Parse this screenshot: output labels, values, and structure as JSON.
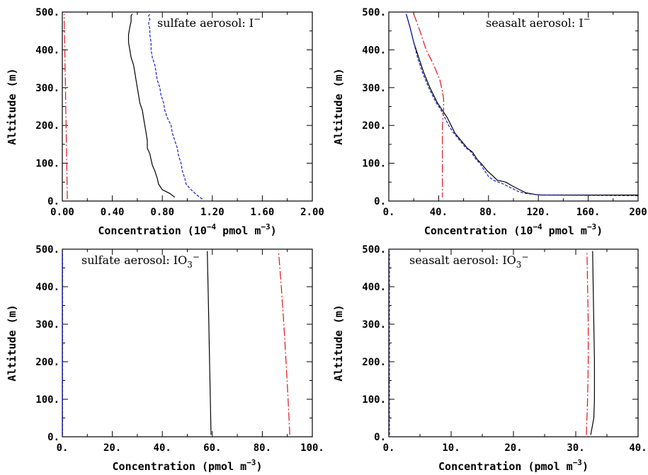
{
  "chart_data": [
    {
      "type": "line",
      "title": "sulfate aerosol: I",
      "title_superscript": "−",
      "title_subscript": "",
      "xlabel": "Concentration (10",
      "xlabel_exp": "−4",
      "xlabel_tail": " pmol m",
      "xlabel_tail_exp": "−3",
      "xlabel_close": ")",
      "ylabel": "Altitude (m)",
      "xlim": [
        0,
        2.0
      ],
      "ylim": [
        0,
        500
      ],
      "x_major_ticks": [
        0,
        0.4,
        0.8,
        1.2,
        1.6,
        2.0
      ],
      "x_minor_ticks": [
        0.2,
        0.6,
        1.0,
        1.4,
        1.8
      ],
      "x_tick_labels": [
        "0.00",
        "0.40",
        "0.80",
        "1.20",
        "1.60",
        "2.00"
      ],
      "y_major_ticks": [
        0,
        100,
        200,
        300,
        400,
        500
      ],
      "y_minor_ticks": [
        50,
        150,
        250,
        350,
        450
      ],
      "y_tick_labels": [
        "0.",
        "100.",
        "200.",
        "300.",
        "400.",
        "500."
      ],
      "series": [
        {
          "color": "#000000",
          "dash": "",
          "points": [
            [
              0.9,
              10
            ],
            [
              0.86,
              20
            ],
            [
              0.8,
              30
            ],
            [
              0.77,
              45
            ],
            [
              0.76,
              60
            ],
            [
              0.74,
              80
            ],
            [
              0.72,
              95
            ],
            [
              0.71,
              110
            ],
            [
              0.7,
              125
            ],
            [
              0.68,
              140
            ],
            [
              0.68,
              160
            ],
            [
              0.67,
              180
            ],
            [
              0.66,
              200
            ],
            [
              0.65,
              220
            ],
            [
              0.64,
              240
            ],
            [
              0.62,
              260
            ],
            [
              0.61,
              280
            ],
            [
              0.6,
              300
            ],
            [
              0.59,
              320
            ],
            [
              0.58,
              340
            ],
            [
              0.57,
              360
            ],
            [
              0.55,
              380
            ],
            [
              0.54,
              400
            ],
            [
              0.53,
              420
            ],
            [
              0.53,
              440
            ],
            [
              0.54,
              460
            ],
            [
              0.55,
              475
            ],
            [
              0.55,
              490
            ],
            [
              0.56,
              495
            ]
          ]
        },
        {
          "color": "#1a1adc",
          "dash": "4,2",
          "points": [
            [
              1.12,
              5
            ],
            [
              1.08,
              15
            ],
            [
              1.03,
              30
            ],
            [
              0.99,
              45
            ],
            [
              0.98,
              60
            ],
            [
              0.96,
              80
            ],
            [
              0.95,
              100
            ],
            [
              0.93,
              120
            ],
            [
              0.92,
              140
            ],
            [
              0.9,
              160
            ],
            [
              0.88,
              180
            ],
            [
              0.87,
              200
            ],
            [
              0.84,
              220
            ],
            [
              0.82,
              240
            ],
            [
              0.81,
              260
            ],
            [
              0.79,
              280
            ],
            [
              0.78,
              300
            ],
            [
              0.76,
              320
            ],
            [
              0.75,
              340
            ],
            [
              0.74,
              360
            ],
            [
              0.72,
              380
            ],
            [
              0.71,
              400
            ],
            [
              0.71,
              420
            ],
            [
              0.7,
              440
            ],
            [
              0.7,
              455
            ],
            [
              0.69,
              470
            ],
            [
              0.7,
              480
            ],
            [
              0.69,
              490
            ],
            [
              0.7,
              495
            ]
          ]
        },
        {
          "color": "#e0121b",
          "dash": "12,3,2,3",
          "points": [
            [
              0.04,
              5
            ],
            [
              0.035,
              100
            ],
            [
              0.03,
              200
            ],
            [
              0.025,
              300
            ],
            [
              0.02,
              400
            ],
            [
              0.015,
              495
            ]
          ]
        }
      ]
    },
    {
      "type": "line",
      "title": "seasalt aerosol: I",
      "title_superscript": "−",
      "title_subscript": "",
      "xlabel": "Concentration (10",
      "xlabel_exp": "−4",
      "xlabel_tail": " pmol m",
      "xlabel_tail_exp": "−3",
      "xlabel_close": ")",
      "ylabel": "Altitude (m)",
      "xlim": [
        0,
        200
      ],
      "ylim": [
        0,
        500
      ],
      "x_major_ticks": [
        0,
        40,
        80,
        120,
        160,
        200
      ],
      "x_minor_ticks": [
        20,
        60,
        100,
        140,
        180
      ],
      "x_tick_labels": [
        "0.",
        "40.",
        "80.",
        "120.",
        "160.",
        "200"
      ],
      "y_major_ticks": [
        0,
        100,
        200,
        300,
        400,
        500
      ],
      "y_minor_ticks": [
        50,
        150,
        250,
        350,
        450
      ],
      "y_tick_labels": [
        "0.",
        "100.",
        "200.",
        "300.",
        "400.",
        "500."
      ],
      "series": [
        {
          "color": "#000000",
          "dash": "",
          "points": [
            [
              14,
              495
            ],
            [
              17,
              460
            ],
            [
              20,
              420
            ],
            [
              24,
              380
            ],
            [
              28,
              340
            ],
            [
              33,
              300
            ],
            [
              39,
              260
            ],
            [
              43,
              240
            ],
            [
              47,
              220
            ],
            [
              50,
              200
            ],
            [
              53,
              180
            ],
            [
              58,
              160
            ],
            [
              63,
              140
            ],
            [
              67,
              130
            ],
            [
              71,
              110
            ],
            [
              74,
              100
            ],
            [
              79,
              80
            ],
            [
              84,
              65
            ],
            [
              87,
              55
            ],
            [
              94,
              50
            ],
            [
              99,
              40
            ],
            [
              105,
              30
            ],
            [
              110,
              22
            ],
            [
              118,
              17
            ],
            [
              122,
              16
            ],
            [
              160,
              16
            ],
            [
              200,
              16
            ]
          ]
        },
        {
          "color": "#1a1adc",
          "dash": "4,2",
          "points": [
            [
              14,
              495
            ],
            [
              17,
              460
            ],
            [
              20,
              420
            ],
            [
              23,
              380
            ],
            [
              27,
              340
            ],
            [
              32,
              300
            ],
            [
              38,
              260
            ],
            [
              42,
              240
            ],
            [
              45,
              220
            ],
            [
              48,
              200
            ],
            [
              52,
              180
            ],
            [
              57,
              160
            ],
            [
              62,
              140
            ],
            [
              66,
              130
            ],
            [
              70,
              110
            ],
            [
              73,
              100
            ],
            [
              77,
              80
            ],
            [
              80,
              65
            ],
            [
              84,
              55
            ],
            [
              92,
              45
            ],
            [
              98,
              35
            ],
            [
              104,
              25
            ],
            [
              110,
              20
            ],
            [
              118,
              17
            ],
            [
              122,
              16
            ],
            [
              160,
              15
            ],
            [
              200,
              14
            ]
          ]
        },
        {
          "color": "#e0121b",
          "dash": "12,3,2,3",
          "points": [
            [
              20,
              495
            ],
            [
              25,
              450
            ],
            [
              30,
              400
            ],
            [
              36,
              360
            ],
            [
              41,
              320
            ],
            [
              43,
              290
            ],
            [
              44,
              270
            ],
            [
              44,
              240
            ],
            [
              43,
              200
            ],
            [
              43,
              150
            ],
            [
              43,
              100
            ],
            [
              43,
              50
            ],
            [
              43,
              10
            ]
          ]
        }
      ]
    },
    {
      "type": "line",
      "title": "sulfate aerosol: IO",
      "title_superscript": "−",
      "title_subscript": "3",
      "xlabel": "Concentration (pmol m",
      "xlabel_exp": "−3",
      "xlabel_tail": "",
      "xlabel_tail_exp": "",
      "xlabel_close": ")",
      "ylabel": "Altitude (m)",
      "xlim": [
        0,
        100
      ],
      "ylim": [
        0,
        500
      ],
      "x_major_ticks": [
        0,
        20,
        40,
        60,
        80,
        100
      ],
      "x_minor_ticks": [
        10,
        30,
        50,
        70,
        90
      ],
      "x_tick_labels": [
        "0.",
        "20.",
        "40.",
        "60.",
        "80.",
        "100."
      ],
      "y_major_ticks": [
        0,
        100,
        200,
        300,
        400,
        500
      ],
      "y_minor_ticks": [
        50,
        150,
        250,
        350,
        450
      ],
      "y_tick_labels": [
        "0.",
        "100.",
        "200.",
        "300.",
        "400.",
        "500."
      ],
      "series": [
        {
          "color": "#000000",
          "dash": "",
          "points": [
            [
              59.5,
              5
            ],
            [
              59.2,
              100
            ],
            [
              58.9,
              200
            ],
            [
              58.6,
              300
            ],
            [
              58.3,
              400
            ],
            [
              58.0,
              495
            ]
          ]
        },
        {
          "color": "#e0121b",
          "dash": "12,3,2,3",
          "points": [
            [
              91,
              5
            ],
            [
              90.3,
              100
            ],
            [
              89.5,
              200
            ],
            [
              88.6,
              300
            ],
            [
              87.6,
              400
            ],
            [
              86.5,
              495
            ]
          ]
        },
        {
          "color": "#1a1adc",
          "dash": "4,2",
          "points": [
            [
              0.1,
              5
            ],
            [
              0.1,
              495
            ]
          ]
        }
      ]
    },
    {
      "type": "line",
      "title": "seasalt aerosol: IO",
      "title_superscript": "−",
      "title_subscript": "3",
      "xlabel": "Concentration (pmol m",
      "xlabel_exp": "−3",
      "xlabel_tail": "",
      "xlabel_tail_exp": "",
      "xlabel_close": ")",
      "ylabel": "Altitude (m)",
      "xlim": [
        0,
        40
      ],
      "ylim": [
        0,
        500
      ],
      "x_major_ticks": [
        0,
        10,
        20,
        30,
        40
      ],
      "x_minor_ticks": [
        5,
        15,
        25,
        35
      ],
      "x_tick_labels": [
        "0.",
        "10.",
        "20.",
        "30.",
        "40."
      ],
      "y_major_ticks": [
        0,
        100,
        200,
        300,
        400,
        500
      ],
      "y_minor_ticks": [
        50,
        150,
        250,
        350,
        450
      ],
      "y_tick_labels": [
        "0.",
        "100.",
        "200.",
        "300.",
        "400.",
        "500."
      ],
      "series": [
        {
          "color": "#000000",
          "dash": "",
          "points": [
            [
              32.4,
              5
            ],
            [
              32.9,
              50
            ],
            [
              33.0,
              100
            ],
            [
              33.0,
              200
            ],
            [
              32.9,
              300
            ],
            [
              32.8,
              400
            ],
            [
              32.7,
              495
            ]
          ]
        },
        {
          "color": "#e0121b",
          "dash": "12,3,2,3",
          "points": [
            [
              31.7,
              5
            ],
            [
              31.9,
              100
            ],
            [
              32.0,
              200
            ],
            [
              32.0,
              300
            ],
            [
              31.9,
              400
            ],
            [
              31.8,
              495
            ]
          ]
        },
        {
          "color": "#1a1adc",
          "dash": "4,2",
          "points": [
            [
              0.1,
              5
            ],
            [
              0.1,
              495
            ]
          ]
        }
      ]
    }
  ]
}
